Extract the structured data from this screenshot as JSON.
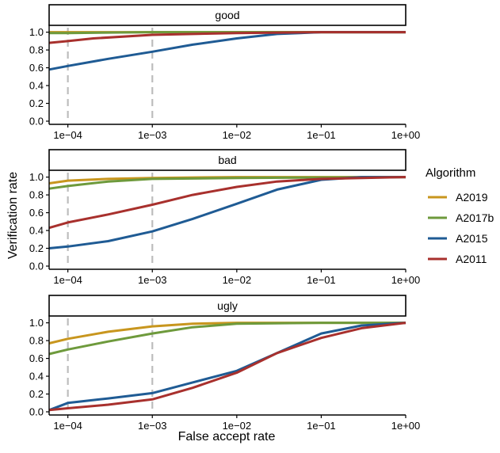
{
  "chart_data": {
    "type": "line",
    "xlabel": "False accept rate",
    "ylabel": "Verification rate",
    "xscale": "log",
    "xlim": [
      6e-05,
      1
    ],
    "ylim": [
      0,
      1.05
    ],
    "xticks": [
      0.0001,
      0.001,
      0.01,
      0.1,
      1
    ],
    "xtick_labels": [
      "1e−04",
      "1e−03",
      "1e−02",
      "1e−01",
      "1e+00"
    ],
    "yticks": [
      0,
      0.2,
      0.4,
      0.6,
      0.8,
      1.0
    ],
    "ytick_labels": [
      "0.0",
      "0.2",
      "0.4",
      "0.6",
      "0.8",
      "1.0"
    ],
    "reference_lines_x": [
      0.0001,
      0.001
    ],
    "legend": {
      "title": "Algorithm",
      "placement": "right",
      "items": [
        {
          "name": "A2019",
          "color": "#C8961E"
        },
        {
          "name": "A2017b",
          "color": "#6E9A3C"
        },
        {
          "name": "A2015",
          "color": "#1F5B94"
        },
        {
          "name": "A2011",
          "color": "#A8302D"
        }
      ]
    },
    "panels": [
      {
        "title": "good",
        "series": [
          {
            "name": "A2019",
            "points": [
              [
                6e-05,
                1.0
              ],
              [
                0.0001,
                1.0
              ],
              [
                0.001,
                1.0
              ],
              [
                1,
                1.0
              ]
            ]
          },
          {
            "name": "A2017b",
            "points": [
              [
                6e-05,
                0.99
              ],
              [
                0.0001,
                0.99
              ],
              [
                0.001,
                1.0
              ],
              [
                0.01,
                1.0
              ],
              [
                1,
                1.0
              ]
            ]
          },
          {
            "name": "A2015",
            "points": [
              [
                6e-05,
                0.58
              ],
              [
                0.0001,
                0.62
              ],
              [
                0.0003,
                0.7
              ],
              [
                0.001,
                0.78
              ],
              [
                0.003,
                0.86
              ],
              [
                0.01,
                0.93
              ],
              [
                0.03,
                0.98
              ],
              [
                0.1,
                1.0
              ],
              [
                1,
                1.0
              ]
            ]
          },
          {
            "name": "A2011",
            "points": [
              [
                6e-05,
                0.88
              ],
              [
                0.0001,
                0.9
              ],
              [
                0.0002,
                0.93
              ],
              [
                0.001,
                0.97
              ],
              [
                0.01,
                0.99
              ],
              [
                0.1,
                1.0
              ],
              [
                1,
                1.0
              ]
            ]
          }
        ]
      },
      {
        "title": "bad",
        "series": [
          {
            "name": "A2019",
            "points": [
              [
                6e-05,
                0.93
              ],
              [
                0.0001,
                0.96
              ],
              [
                0.0003,
                0.98
              ],
              [
                0.001,
                0.99
              ],
              [
                0.01,
                1.0
              ],
              [
                1,
                1.0
              ]
            ]
          },
          {
            "name": "A2017b",
            "points": [
              [
                6e-05,
                0.87
              ],
              [
                0.0001,
                0.9
              ],
              [
                0.0003,
                0.95
              ],
              [
                0.001,
                0.98
              ],
              [
                0.01,
                0.99
              ],
              [
                1,
                1.0
              ]
            ]
          },
          {
            "name": "A2015",
            "points": [
              [
                6e-05,
                0.2
              ],
              [
                0.0001,
                0.22
              ],
              [
                0.0003,
                0.28
              ],
              [
                0.001,
                0.39
              ],
              [
                0.003,
                0.53
              ],
              [
                0.01,
                0.7
              ],
              [
                0.03,
                0.86
              ],
              [
                0.1,
                0.97
              ],
              [
                0.3,
                1.0
              ],
              [
                1,
                1.0
              ]
            ]
          },
          {
            "name": "A2011",
            "points": [
              [
                6e-05,
                0.43
              ],
              [
                0.0001,
                0.49
              ],
              [
                0.0003,
                0.58
              ],
              [
                0.001,
                0.69
              ],
              [
                0.003,
                0.8
              ],
              [
                0.01,
                0.89
              ],
              [
                0.03,
                0.95
              ],
              [
                0.1,
                0.98
              ],
              [
                1,
                1.0
              ]
            ]
          }
        ]
      },
      {
        "title": "ugly",
        "series": [
          {
            "name": "A2019",
            "points": [
              [
                6e-05,
                0.77
              ],
              [
                0.0001,
                0.82
              ],
              [
                0.0003,
                0.9
              ],
              [
                0.001,
                0.96
              ],
              [
                0.003,
                0.99
              ],
              [
                0.01,
                1.0
              ],
              [
                1,
                1.0
              ]
            ]
          },
          {
            "name": "A2017b",
            "points": [
              [
                6e-05,
                0.65
              ],
              [
                0.0001,
                0.7
              ],
              [
                0.0003,
                0.79
              ],
              [
                0.001,
                0.88
              ],
              [
                0.003,
                0.95
              ],
              [
                0.01,
                0.99
              ],
              [
                0.1,
                1.0
              ],
              [
                1,
                1.0
              ]
            ]
          },
          {
            "name": "A2015",
            "points": [
              [
                6e-05,
                0.02
              ],
              [
                0.0001,
                0.1
              ],
              [
                0.0003,
                0.15
              ],
              [
                0.001,
                0.21
              ],
              [
                0.003,
                0.33
              ],
              [
                0.01,
                0.46
              ],
              [
                0.03,
                0.66
              ],
              [
                0.1,
                0.88
              ],
              [
                0.3,
                0.97
              ],
              [
                1,
                1.0
              ]
            ]
          },
          {
            "name": "A2011",
            "points": [
              [
                6e-05,
                0.02
              ],
              [
                0.0001,
                0.04
              ],
              [
                0.0003,
                0.08
              ],
              [
                0.001,
                0.14
              ],
              [
                0.003,
                0.27
              ],
              [
                0.01,
                0.44
              ],
              [
                0.03,
                0.66
              ],
              [
                0.1,
                0.83
              ],
              [
                0.3,
                0.94
              ],
              [
                1,
                1.0
              ]
            ]
          }
        ]
      }
    ]
  }
}
